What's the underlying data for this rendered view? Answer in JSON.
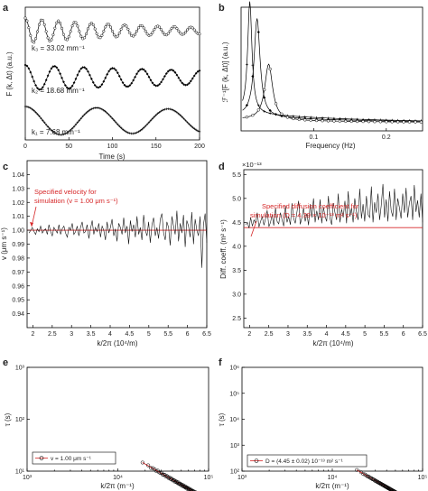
{
  "chart_data": [
    {
      "panel": "a",
      "type": "line",
      "xlabel": "Time (s)",
      "ylabel": "F (k, Δt) (a.u.)",
      "xlim": [
        0,
        200
      ],
      "xticks": [
        0,
        50,
        100,
        150,
        200
      ],
      "series": [
        {
          "k_label": "k₃ = 33.02 mm⁻¹",
          "k": 33.02,
          "period_s": 19,
          "decay_s": 150
        },
        {
          "k_label": "k₂ = 18.68 mm⁻¹",
          "k": 18.68,
          "period_s": 33.5,
          "decay_s": 350
        },
        {
          "k_label": "k₁ = 7.68 mm⁻¹",
          "k": 7.68,
          "period_s": 82,
          "decay_s": 900
        }
      ]
    },
    {
      "panel": "b",
      "type": "line",
      "xlabel": "Frequency (Hz)",
      "ylabel": "ℱ⁻¹[F (k, Δt)] (a.u.)",
      "xlim": [
        0,
        0.25
      ],
      "xticks": [
        0.1,
        0.2
      ],
      "xticklabels": [
        "0.1",
        "0.2"
      ],
      "peaks_hz": [
        0.012,
        0.022,
        0.038
      ],
      "peak_heights": [
        1.0,
        0.88,
        0.5
      ]
    },
    {
      "panel": "c",
      "type": "line",
      "xlabel": "k/2π (10⁴/m)",
      "ylabel": "v (μm s⁻¹)",
      "xlim": [
        1.85,
        6.5
      ],
      "ylim": [
        0.93,
        1.05
      ],
      "xticks": [
        2,
        2.5,
        3,
        3.5,
        4,
        4.5,
        5,
        5.5,
        6,
        6.5
      ],
      "yticks": [
        0.94,
        0.95,
        0.96,
        0.97,
        0.98,
        0.99,
        1.0,
        1.01,
        1.02,
        1.03,
        1.04
      ],
      "reference": 1.0,
      "annotation": [
        "Specified velocity for",
        "simulation (v = 1.00 μm s⁻¹)"
      ],
      "values": [
        0.998,
        1.0,
        1.002,
        0.999,
        0.997,
        1.001,
        0.999,
        1.003,
        0.998,
        1.0,
        1.001,
        0.997,
        1.004,
        0.999,
        0.996,
        1.002,
        1.0,
        0.998,
        1.004,
        0.997,
        1.001,
        1.003,
        0.998,
        0.995,
        1.002,
        1.0,
        1.005,
        0.997,
        0.999,
        1.003,
        0.996,
        1.002,
        1.006,
        0.998,
        0.999,
        1.004,
        0.994,
        1.001,
        1.007,
        0.997,
        1.002,
        0.999,
        1.005,
        0.995,
        1.003,
        1.0,
        0.993,
        1.006,
        0.998,
        1.002,
        1.008,
        0.996,
        1.001,
        0.992,
        1.005,
        1.002,
        0.997,
        1.009,
        0.998,
        1.003,
        0.99,
        1.007,
        0.999,
        1.004,
        0.995,
        1.01,
        0.997,
        1.002,
        0.993,
        1.011,
        1.0,
        0.996,
        1.006,
        0.991,
        1.004,
        1.009,
        0.996,
        1.002,
        0.994,
        1.008,
        1.012,
        0.998,
        0.993,
        1.006,
        1.002,
        0.989,
        1.01,
        1.003,
        0.997,
        1.014,
        0.992,
        1.005,
        0.998,
        1.011,
        0.988,
        1.007,
        1.003,
        0.995,
        1.013,
        0.99,
        1.008,
        1.0,
        0.996,
        1.01,
        0.973,
        1.004,
        1.012,
        0.991
      ]
    },
    {
      "panel": "d",
      "type": "line",
      "xlabel": "k/2π (10⁴/m)",
      "ylabel": "Diff. coeff. (m² s⁻¹)",
      "exponent_label": "×10⁻¹³",
      "xlim": [
        1.85,
        6.5
      ],
      "ylim": [
        2.3,
        5.6
      ],
      "xticks": [
        2,
        2.5,
        3,
        3.5,
        4,
        4.5,
        5,
        5.5,
        6,
        6.5
      ],
      "yticks": [
        2.5,
        3,
        3.5,
        4,
        4.5,
        5,
        5.5
      ],
      "reference": 4.39,
      "annotation": [
        "Specified diffusion coefficient for",
        "simulation (D = 4.39 × 10⁻¹³ m² s⁻¹)"
      ],
      "values": [
        4.45,
        4.5,
        4.38,
        4.6,
        4.42,
        4.55,
        4.48,
        4.7,
        4.4,
        4.52,
        4.62,
        4.44,
        4.58,
        4.75,
        4.41,
        4.5,
        4.66,
        4.43,
        4.8,
        4.52,
        4.47,
        4.7,
        4.55,
        4.42,
        4.85,
        4.5,
        4.62,
        4.45,
        4.9,
        4.58,
        4.48,
        4.72,
        4.95,
        4.46,
        4.6,
        4.8,
        4.52,
        4.68,
        4.44,
        4.88,
        4.6,
        5.0,
        4.5,
        4.74,
        4.55,
        4.98,
        4.48,
        4.82,
        4.62,
        4.52,
        5.05,
        4.58,
        4.45,
        4.9,
        4.7,
        4.55,
        5.1,
        4.5,
        4.78,
        4.6,
        4.95,
        4.48,
        5.15,
        4.62,
        4.8,
        4.5,
        5.0,
        4.72,
        4.55,
        5.2,
        4.58,
        4.88,
        4.52,
        5.05,
        4.66,
        4.6,
        5.25,
        4.5,
        4.92,
        4.7,
        5.1,
        4.55,
        4.85,
        5.3,
        4.6,
        4.98,
        4.52,
        5.15,
        4.75,
        4.62,
        5.2,
        4.55,
        5.0,
        4.8,
        4.58,
        5.1,
        4.7,
        5.22,
        4.6,
        4.9,
        5.05,
        4.55,
        5.28,
        4.72,
        4.96,
        4.6,
        5.1,
        4.5
      ]
    },
    {
      "panel": "e",
      "type": "scatter",
      "xlabel": "k/2π (m⁻¹)",
      "ylabel": "τ (s)",
      "xscale": "log",
      "yscale": "log",
      "xlim": [
        1000,
        100000
      ],
      "ylim": [
        10,
        1000
      ],
      "xticklabels": [
        "10³",
        "10⁴",
        "10⁵"
      ],
      "yticklabels": [
        "10¹",
        "10²",
        "10³"
      ],
      "x_range": [
        18700,
        92000
      ],
      "fit": "τ = 1/(v k)",
      "legend": "v = 1.00 μm s⁻¹",
      "legend_loc": "lower-left"
    },
    {
      "panel": "f",
      "type": "scatter",
      "xlabel": "k/2π (m⁻¹)",
      "ylabel": "τ (s)",
      "xscale": "log",
      "yscale": "log",
      "xlim": [
        1000,
        100000
      ],
      "ylim": [
        100,
        1000000
      ],
      "xticklabels": [
        "10³",
        "10⁴",
        "10⁵"
      ],
      "yticklabels": [
        "10²",
        "10³",
        "10⁴",
        "10⁵",
        "10⁶"
      ],
      "x_range": [
        18700,
        65000
      ],
      "fit": "τ = 1/(D k²)",
      "legend": "D = (4.45 ± 0.02) 10⁻¹³ m² s⁻¹",
      "legend_loc": "lower-left"
    }
  ]
}
